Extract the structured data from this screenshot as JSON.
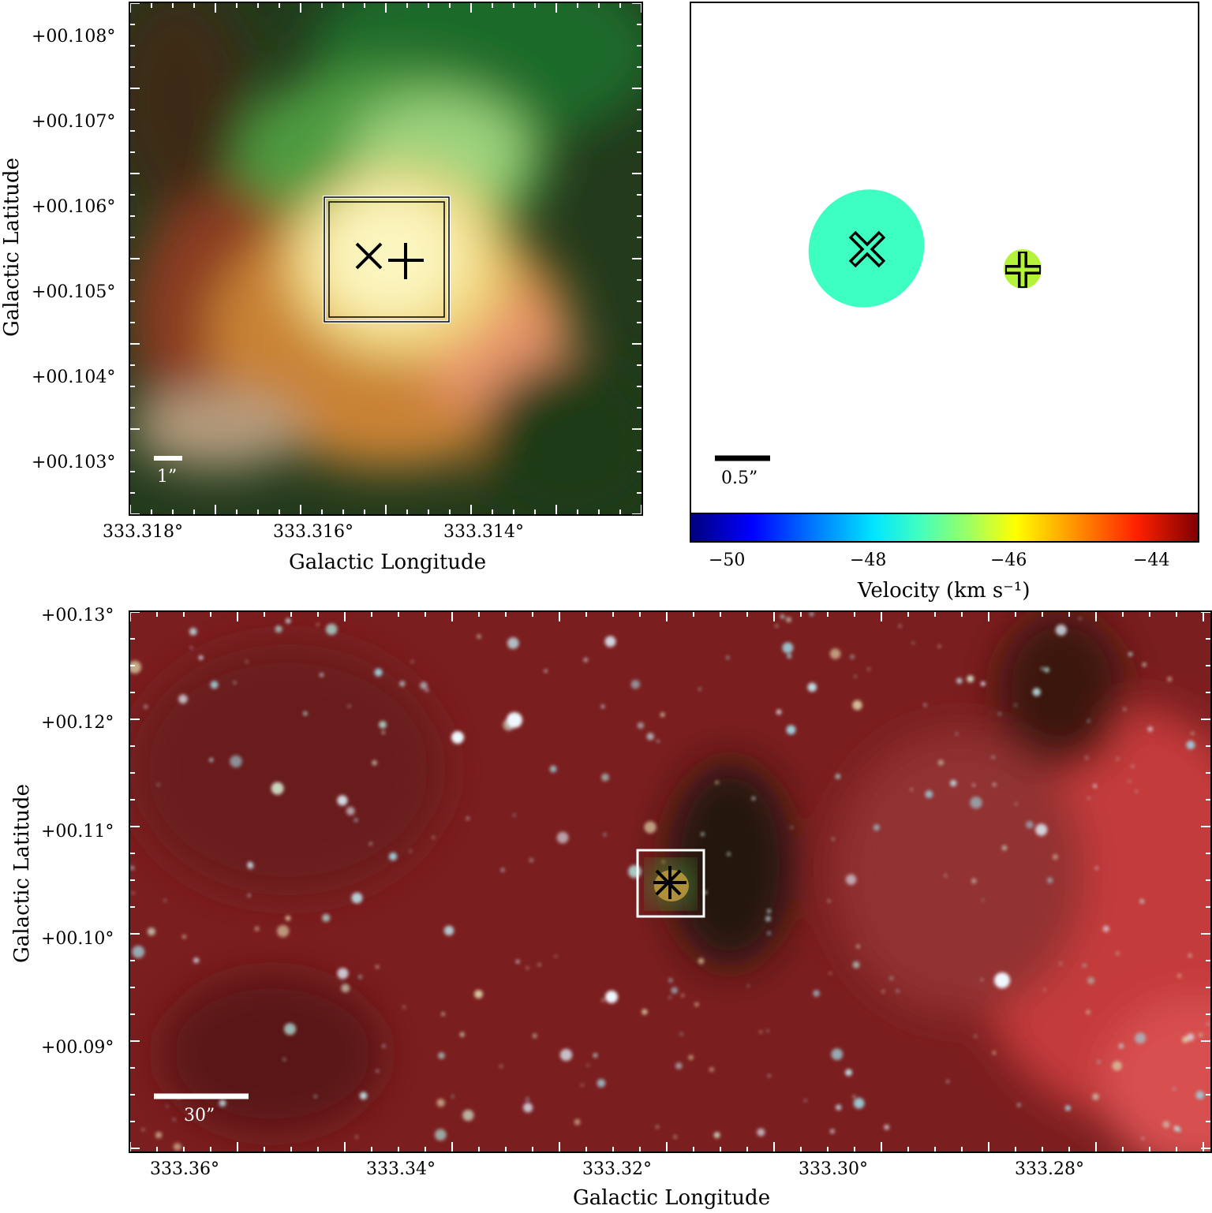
{
  "top_left": {
    "xlabel": "Galactic Longitude",
    "ylabel": "Galactic Latitude",
    "xticks": [
      "333.318°",
      "333.316°",
      "333.314°"
    ],
    "yticks": [
      "+00.108°",
      "+00.107°",
      "+00.106°",
      "+00.105°",
      "+00.104°",
      "+00.103°"
    ],
    "scalebar": "1”",
    "markers": [
      "x-marker",
      "plus-marker"
    ]
  },
  "top_right": {
    "scalebar": "0.5”",
    "colorbar": {
      "label": "Velocity (km s⁻¹)",
      "ticks": [
        "−50",
        "−48",
        "−46",
        "−44"
      ],
      "range": [
        -50.5,
        -43.5
      ],
      "colormap": "jet"
    },
    "sources": [
      {
        "marker": "x",
        "velocity": -48.0,
        "color": "#3dffc1"
      },
      {
        "marker": "plus",
        "velocity": -45.9,
        "color": "#b5f23a"
      }
    ]
  },
  "bottom": {
    "xlabel": "Galactic Longitude",
    "ylabel": "Galactic Latitude",
    "xticks": [
      "333.36°",
      "333.34°",
      "333.32°",
      "333.30°",
      "333.28°"
    ],
    "yticks": [
      "+00.13°",
      "+00.12°",
      "+00.11°",
      "+00.10°",
      "+00.09°"
    ],
    "scalebar": "30”"
  }
}
